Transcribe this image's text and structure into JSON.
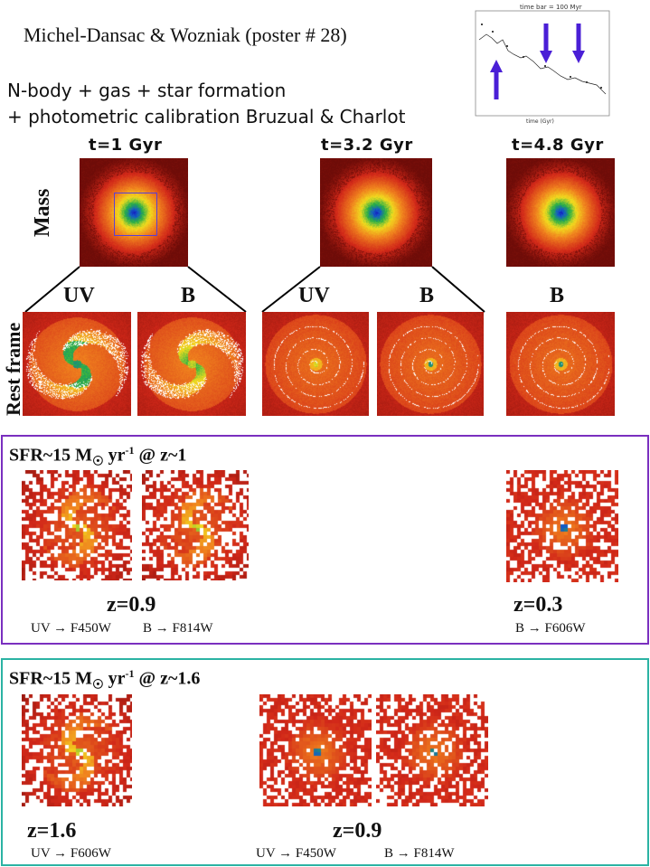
{
  "header": {
    "title": "Michel-Dansac & Wozniak (poster # 28)",
    "line1": "N-body + gas + star formation",
    "line2": "+ photometric calibration Bruzual & Charlot",
    "inset_top_label": "time bar = 100 Myr",
    "inset_bottom_label": "time (Gyr)"
  },
  "row_labels": {
    "mass": "Mass",
    "rest_frame": "Rest frame"
  },
  "times": {
    "t1": "t=1 Gyr",
    "t2": "t=3.2 Gyr",
    "t3": "t=4.8 Gyr"
  },
  "bands": {
    "uv1": "UV",
    "b1": "B",
    "uv2": "UV",
    "b2": "B",
    "b3": "B"
  },
  "box1": {
    "sfr_prefix": "SFR~15 M",
    "sfr_unit": "yr",
    "sfr_exp": "-1",
    "sfr_suffix": " @ z~1",
    "z_left": "z=0.9",
    "filters_left_uv": "UV → F450W",
    "filters_left_b": "B → F814W",
    "z_right": "z=0.3",
    "filters_right": "B → F606W",
    "border_color": "#7a2fbf"
  },
  "box2": {
    "sfr_prefix": "SFR~15 M",
    "sfr_unit": "yr",
    "sfr_exp": "-1",
    "sfr_suffix": " @ z~1.6",
    "z_left": "z=1.6",
    "filters_left": "UV → F606W",
    "z_mid": "z=0.9",
    "filters_mid_uv": "UV → F450W",
    "filters_mid_b": "B → F814W",
    "border_color": "#2bb3a3"
  },
  "colors": {
    "background": "#ffffff",
    "panel_dark": "#7a0f0a",
    "panel_red": "#d8331f",
    "panel_orange": "#f08a1c",
    "panel_yellow": "#f2e41b",
    "panel_green": "#1aa84a",
    "panel_blue": "#1a2fc4",
    "arrow_blue": "#4a1fd6"
  }
}
